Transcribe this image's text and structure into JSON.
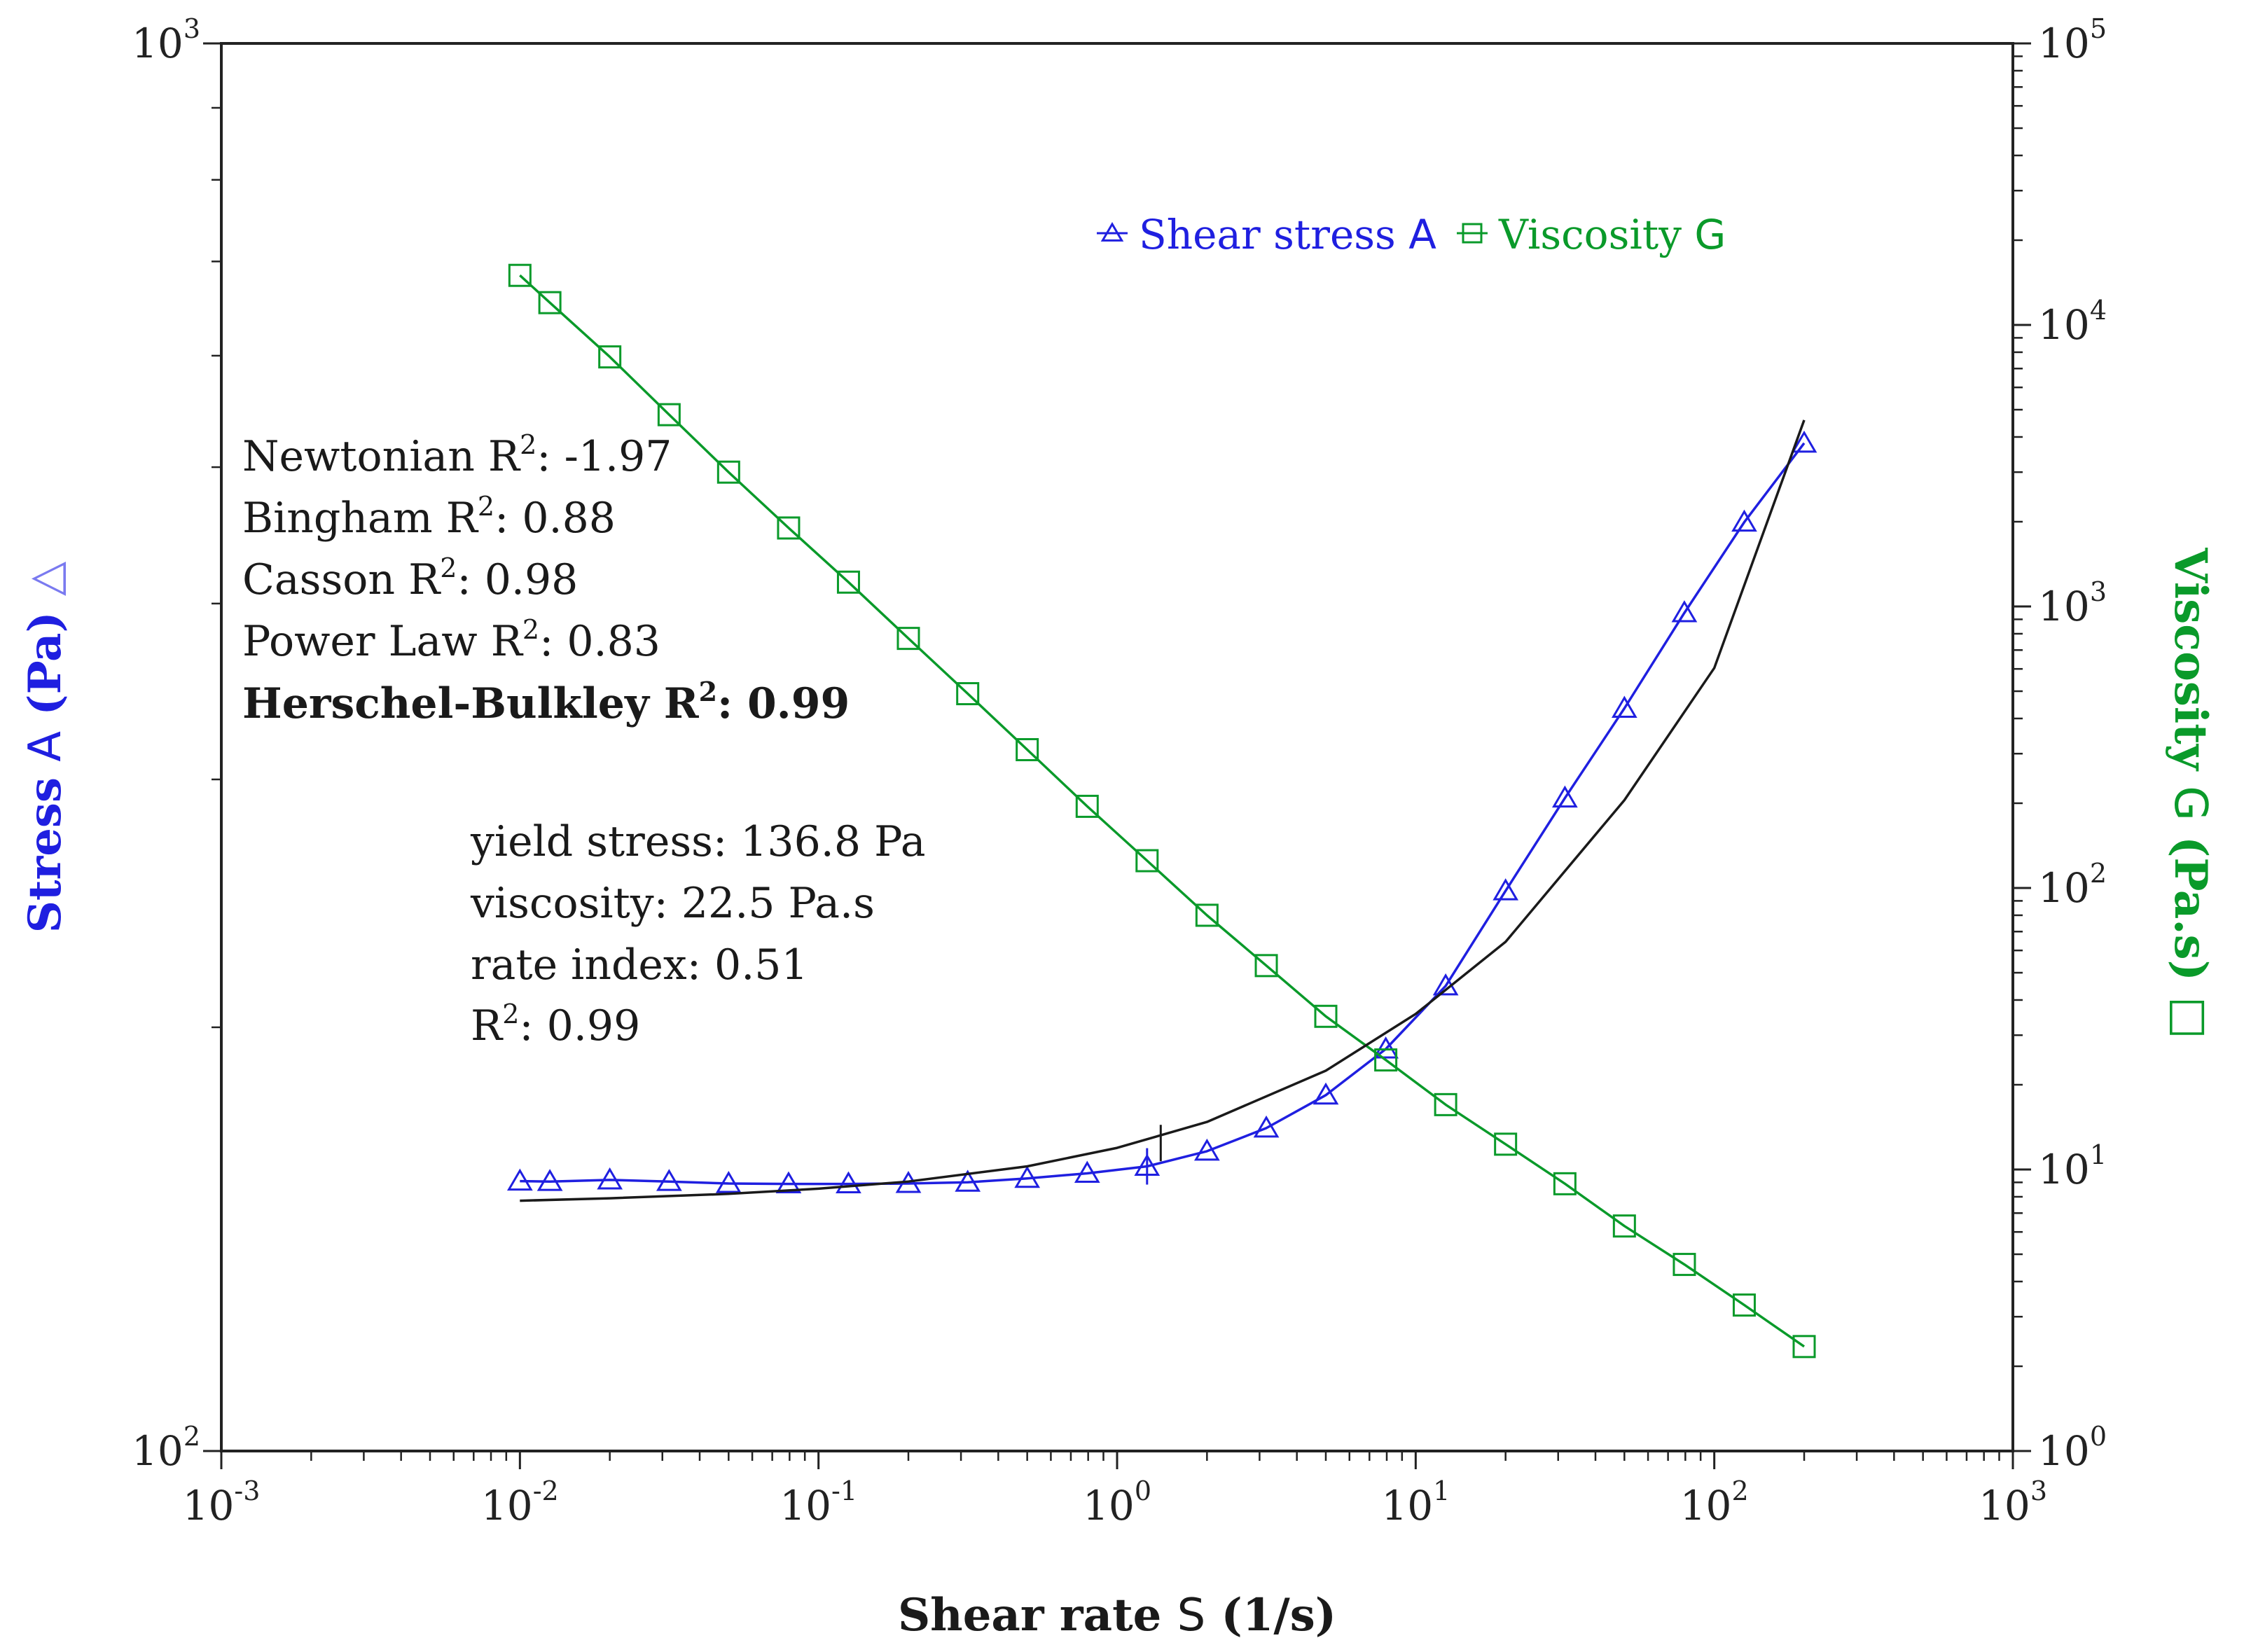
{
  "chart_data": {
    "type": "line",
    "title": "",
    "xlabel": {
      "prefix": "Shear rate",
      "symbol": "S",
      "suffix": "(1/s)"
    },
    "ylabel_left": {
      "prefix": "Stress",
      "symbol": "A",
      "suffix": "(Pa)",
      "marker": "△"
    },
    "ylabel_right": {
      "prefix": "Viscosity",
      "symbol": "G",
      "suffix": "(Pa.s)",
      "marker": "□"
    },
    "x_scale": "log",
    "x_exponents": [
      -3,
      3
    ],
    "y_left_exponents": [
      2,
      3
    ],
    "y_right_exponents": [
      0,
      5
    ],
    "tick_base": "10",
    "xlim": [
      0.001,
      1000
    ],
    "ylim_left": [
      100,
      1000
    ],
    "ylim_right": [
      1,
      100000
    ],
    "legend": {
      "placement": "top-right",
      "entries": [
        {
          "label": "Shear stress",
          "symbol": "A",
          "color": "#1f1fe0",
          "marker": "triangle"
        },
        {
          "label": "Viscosity",
          "symbol": "G",
          "color": "#0a9a2a",
          "marker": "square"
        }
      ]
    },
    "series": [
      {
        "name": "Shear stress A",
        "axis": "left",
        "color": "#1f1fe0",
        "marker": "triangle",
        "x": [
          0.01,
          0.0126,
          0.02,
          0.0316,
          0.05,
          0.0794,
          0.126,
          0.2,
          0.316,
          0.5,
          0.794,
          1.26,
          2,
          3.16,
          5,
          7.94,
          12.6,
          20,
          31.6,
          50,
          79.4,
          126,
          200
        ],
        "y": [
          155.5,
          155.4,
          155.8,
          155.4,
          154.9,
          154.8,
          154.8,
          154.9,
          155.2,
          156.2,
          157.5,
          159.3,
          163.3,
          169.6,
          179,
          193,
          214,
          250,
          291,
          337,
          394,
          457,
          520
        ]
      },
      {
        "name": "Viscosity G",
        "axis": "right",
        "color": "#0a9a2a",
        "marker": "square",
        "x": [
          0.01,
          0.0126,
          0.02,
          0.0316,
          0.05,
          0.0794,
          0.126,
          0.2,
          0.316,
          0.5,
          0.794,
          1.26,
          2,
          3.16,
          5,
          7.94,
          12.6,
          20,
          31.6,
          50,
          79.4,
          126,
          200
        ],
        "y": [
          15000,
          12000,
          7700,
          4800,
          3000,
          1900,
          1220,
          770,
          490,
          310,
          195,
          125,
          80,
          53,
          35,
          24.5,
          17,
          12.3,
          8.9,
          6.3,
          4.6,
          3.3,
          2.35
        ]
      },
      {
        "name": "Herschel-Bulkley fit",
        "axis": "left",
        "color": "#1a1a1a",
        "marker": "none",
        "x": [
          0.01,
          0.02,
          0.05,
          0.1,
          0.2,
          0.5,
          1,
          2,
          5,
          10,
          20,
          50,
          100,
          200
        ],
        "y": [
          150.6,
          151.2,
          152.3,
          153.6,
          155.4,
          159.3,
          164.2,
          171.3,
          186.3,
          204.4,
          230.0,
          290.0,
          360.0,
          540.0
        ]
      }
    ],
    "annotations": {
      "models": [
        {
          "name": "Newtonian",
          "r2_label": "R",
          "sup": "2",
          "value": ": -1.97",
          "bold": false
        },
        {
          "name": "Bingham",
          "r2_label": "R",
          "sup": "2",
          "value": ": 0.88",
          "bold": false
        },
        {
          "name": "Casson",
          "r2_label": "R",
          "sup": "2",
          "value": ": 0.98",
          "bold": false
        },
        {
          "name": "Power Law",
          "r2_label": "R",
          "sup": "2",
          "value": ": 0.83",
          "bold": false
        },
        {
          "name": "Herschel-Bulkley",
          "r2_label": "R",
          "sup": "2",
          "value": ": 0.99",
          "bold": true
        }
      ],
      "fit_params": [
        {
          "text": "yield stress: 136.8 Pa"
        },
        {
          "text": "viscosity: 22.5 Pa.s"
        },
        {
          "text": "rate index: 0.51"
        },
        {
          "text": "R",
          "sup": "2",
          "after": ": 0.99"
        }
      ]
    }
  }
}
